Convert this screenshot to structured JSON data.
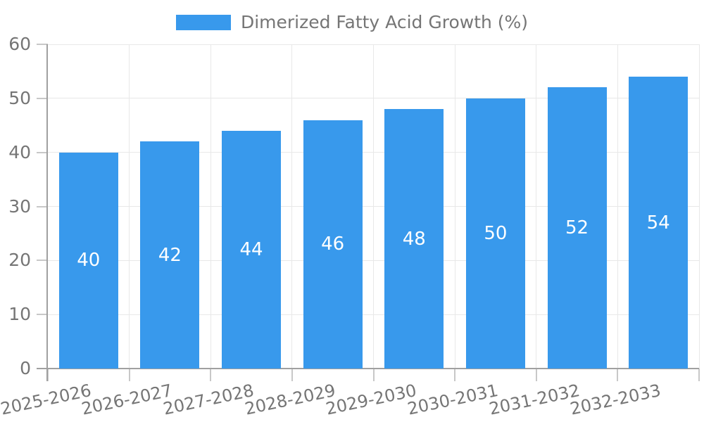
{
  "legend": {
    "label": "Dimerized Fatty Acid Growth (%)",
    "swatch_color": "#3899EC"
  },
  "chart_data": {
    "type": "bar",
    "title": "",
    "categories": [
      "2025-2026",
      "2026-2027",
      "2027-2028",
      "2028-2029",
      "2029-2030",
      "2030-2031",
      "2031-2032",
      "2032-2033"
    ],
    "series": [
      {
        "name": "Dimerized Fatty Acid Growth (%)",
        "values": [
          40,
          42,
          44,
          46,
          48,
          50,
          52,
          54
        ],
        "color": "#3899EC"
      }
    ],
    "value_labels": {
      "position": "inside-center",
      "color": "#ffffff"
    },
    "xlabel": "",
    "ylabel": "",
    "ylim": [
      0,
      60
    ],
    "yticks": [
      0,
      10,
      20,
      30,
      40,
      50,
      60
    ],
    "grid": true,
    "legend_position": "top-center",
    "x_tick_label_rotation_deg": -12
  },
  "colors": {
    "bar": "#3899EC",
    "grid_line": "#e8e8e8",
    "axis_line": "#a0a0a0",
    "tick_mark": "#c8c8c8",
    "tick_label": "#757575",
    "value_label": "#ffffff",
    "background": "#ffffff"
  }
}
